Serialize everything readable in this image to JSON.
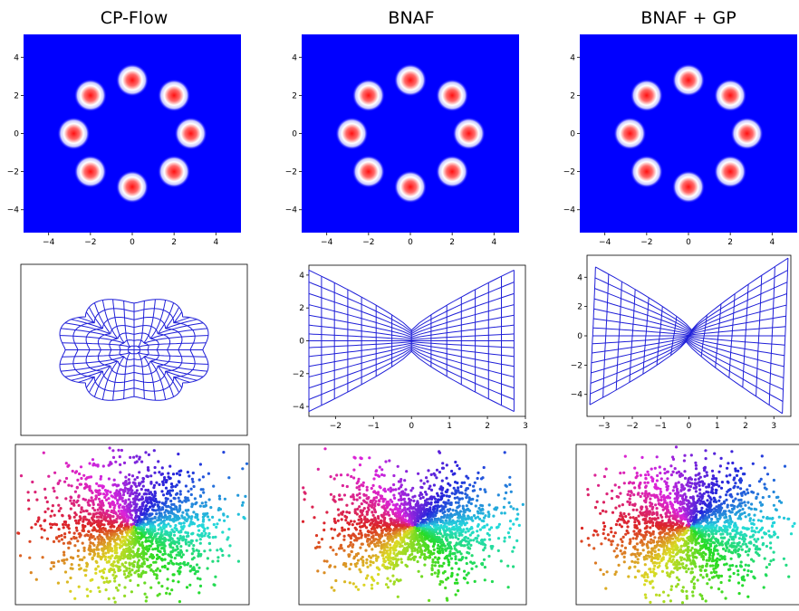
{
  "figure": {
    "columns": [
      {
        "title": "CP-Flow"
      },
      {
        "title": "BNAF"
      },
      {
        "title": "BNAF + GP"
      }
    ]
  },
  "chart_data": [
    {
      "type": "heatmap",
      "panel": "CP-Flow density",
      "xlim": [
        -5.2,
        5.2
      ],
      "ylim": [
        -5.2,
        5.2
      ],
      "xticks": [
        -4,
        -2,
        0,
        2,
        4
      ],
      "yticks": [
        -4,
        -2,
        0,
        2,
        4
      ],
      "modes": [
        [
          0,
          2.8
        ],
        [
          2,
          2
        ],
        [
          2.8,
          0
        ],
        [
          2,
          -2
        ],
        [
          0,
          -2.8
        ],
        [
          -2,
          -2
        ],
        [
          -2.8,
          0
        ],
        [
          -2,
          2
        ]
      ],
      "colormap": [
        "#0000ff",
        "#ffffff",
        "#ff0000"
      ]
    },
    {
      "type": "heatmap",
      "panel": "BNAF density",
      "xlim": [
        -5.2,
        5.2
      ],
      "ylim": [
        -5.2,
        5.2
      ],
      "xticks": [
        -4,
        -2,
        0,
        2,
        4
      ],
      "yticks": [
        -4,
        -2,
        0,
        2,
        4
      ],
      "modes": [
        [
          0,
          2.8
        ],
        [
          2,
          2
        ],
        [
          2.8,
          0
        ],
        [
          2,
          -2
        ],
        [
          0,
          -2.8
        ],
        [
          -2,
          -2
        ],
        [
          -2.8,
          0
        ],
        [
          -2,
          2
        ]
      ],
      "colormap": [
        "#0000ff",
        "#ffffff",
        "#ff0000"
      ]
    },
    {
      "type": "heatmap",
      "panel": "BNAF + GP density",
      "xlim": [
        -5.2,
        5.2
      ],
      "ylim": [
        -5.2,
        5.2
      ],
      "xticks": [
        -4,
        -2,
        0,
        2,
        4
      ],
      "yticks": [
        -4,
        -2,
        0,
        2,
        4
      ],
      "modes": [
        [
          0,
          2.8
        ],
        [
          2,
          2
        ],
        [
          2.8,
          0
        ],
        [
          2,
          -2
        ],
        [
          0,
          -2.8
        ],
        [
          -2,
          -2
        ],
        [
          -2.8,
          0
        ],
        [
          -2,
          2
        ]
      ],
      "colormap": [
        "#0000ff",
        "#ffffff",
        "#ff0000"
      ]
    },
    {
      "type": "line",
      "panel": "CP-Flow transformed grid",
      "xlim": [
        -3.5,
        3.5
      ],
      "ylim": [
        -3.5,
        3.5
      ],
      "xticks": [],
      "yticks": [],
      "line_color": "#1f1fd8"
    },
    {
      "type": "line",
      "panel": "BNAF transformed grid",
      "xlim": [
        -2.7,
        3
      ],
      "ylim": [
        -4.6,
        4.6
      ],
      "xticks": [
        -2,
        -1,
        0,
        1,
        2,
        3
      ],
      "yticks": [
        -4,
        -2,
        0,
        2,
        4
      ],
      "line_color": "#1f1fd8"
    },
    {
      "type": "line",
      "panel": "BNAF + GP transformed grid",
      "xlim": [
        -3.6,
        3.6
      ],
      "ylim": [
        -5.5,
        5.5
      ],
      "xticks": [
        -3,
        -2,
        -1,
        0,
        1,
        2,
        3
      ],
      "yticks": [
        -4,
        -2,
        0,
        2,
        4
      ],
      "line_color": "#1f1fd8"
    },
    {
      "type": "scatter",
      "panel": "CP-Flow samples colored by angle",
      "xticks": [],
      "yticks": []
    },
    {
      "type": "scatter",
      "panel": "BNAF samples colored by angle",
      "xticks": [],
      "yticks": []
    },
    {
      "type": "scatter",
      "panel": "BNAF + GP samples colored by angle",
      "xticks": [],
      "yticks": []
    }
  ]
}
